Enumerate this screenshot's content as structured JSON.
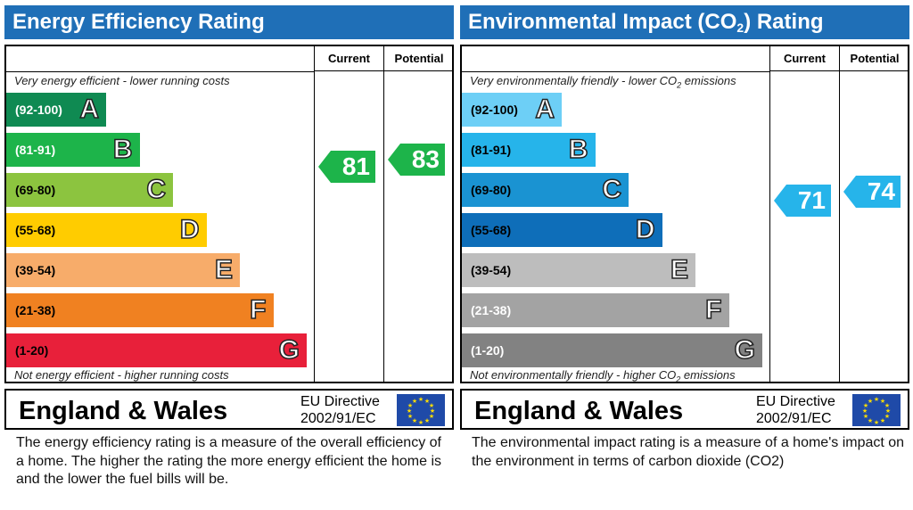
{
  "panels": [
    {
      "title": "Energy Efficiency Rating",
      "col_current": "Current",
      "col_potential": "Potential",
      "top_note": "Very energy efficient - lower running costs",
      "bottom_note": "Not energy efficient - higher running costs",
      "country": "England & Wales",
      "directive_line1": "EU Directive",
      "directive_line2": "2002/91/EC",
      "caption": "The energy efficiency rating is a measure of the overall efficiency of a home.  The higher the rating the more energy efficient the home is and the lower the fuel bills will be."
    },
    {
      "title": "Environmental Impact (CO",
      "title_sub": "2",
      "title_suffix": ") Rating",
      "col_current": "Current",
      "col_potential": "Potential",
      "top_note": "Very environmentally friendly - lower CO",
      "top_note_sub": "2",
      "top_note_suffix": " emissions",
      "bottom_note": "Not environmentally friendly - higher CO",
      "bottom_note_sub": "2",
      "bottom_note_suffix": " emissions",
      "country": "England & Wales",
      "directive_line1": "EU Directive",
      "directive_line2": "2002/91/EC",
      "caption": "The environmental impact rating is a measure of a home's impact on the environment in terms of carbon dioxide (CO2)"
    }
  ],
  "chart_data": [
    {
      "type": "bar",
      "title": "Energy Efficiency Rating",
      "categories": [
        "A",
        "B",
        "C",
        "D",
        "E",
        "F",
        "G"
      ],
      "ranges": [
        "(92-100)",
        "(81-91)",
        "(69-80)",
        "(55-68)",
        "(39-54)",
        "(21-38)",
        "(1-20)"
      ],
      "band_min": [
        92,
        81,
        69,
        55,
        39,
        21,
        1
      ],
      "colors": [
        "#0f8a52",
        "#1db44a",
        "#8cc43f",
        "#ffcc00",
        "#f7ac6a",
        "#f08121",
        "#e8203a"
      ],
      "range_text_colors": [
        "#ffffff",
        "#ffffff",
        "#000000",
        "#000000",
        "#000000",
        "#000000",
        "#000000"
      ],
      "current": 81,
      "potential": 83,
      "current_band": "B",
      "potential_band": "B",
      "arrow_color": "#1db44a"
    },
    {
      "type": "bar",
      "title": "Environmental Impact (CO2) Rating",
      "categories": [
        "A",
        "B",
        "C",
        "D",
        "E",
        "F",
        "G"
      ],
      "ranges": [
        "(92-100)",
        "(81-91)",
        "(69-80)",
        "(55-68)",
        "(39-54)",
        "(21-38)",
        "(1-20)"
      ],
      "band_min": [
        92,
        81,
        69,
        55,
        39,
        21,
        1
      ],
      "colors": [
        "#6dcff6",
        "#26b4ea",
        "#1a93d2",
        "#0e6eb9",
        "#bdbdbd",
        "#a3a3a3",
        "#828282"
      ],
      "range_text_colors": [
        "#000000",
        "#000000",
        "#000000",
        "#000000",
        "#000000",
        "#ffffff",
        "#ffffff"
      ],
      "current": 71,
      "potential": 74,
      "current_band": "C",
      "potential_band": "C",
      "arrow_color": "#26b4ea"
    }
  ]
}
